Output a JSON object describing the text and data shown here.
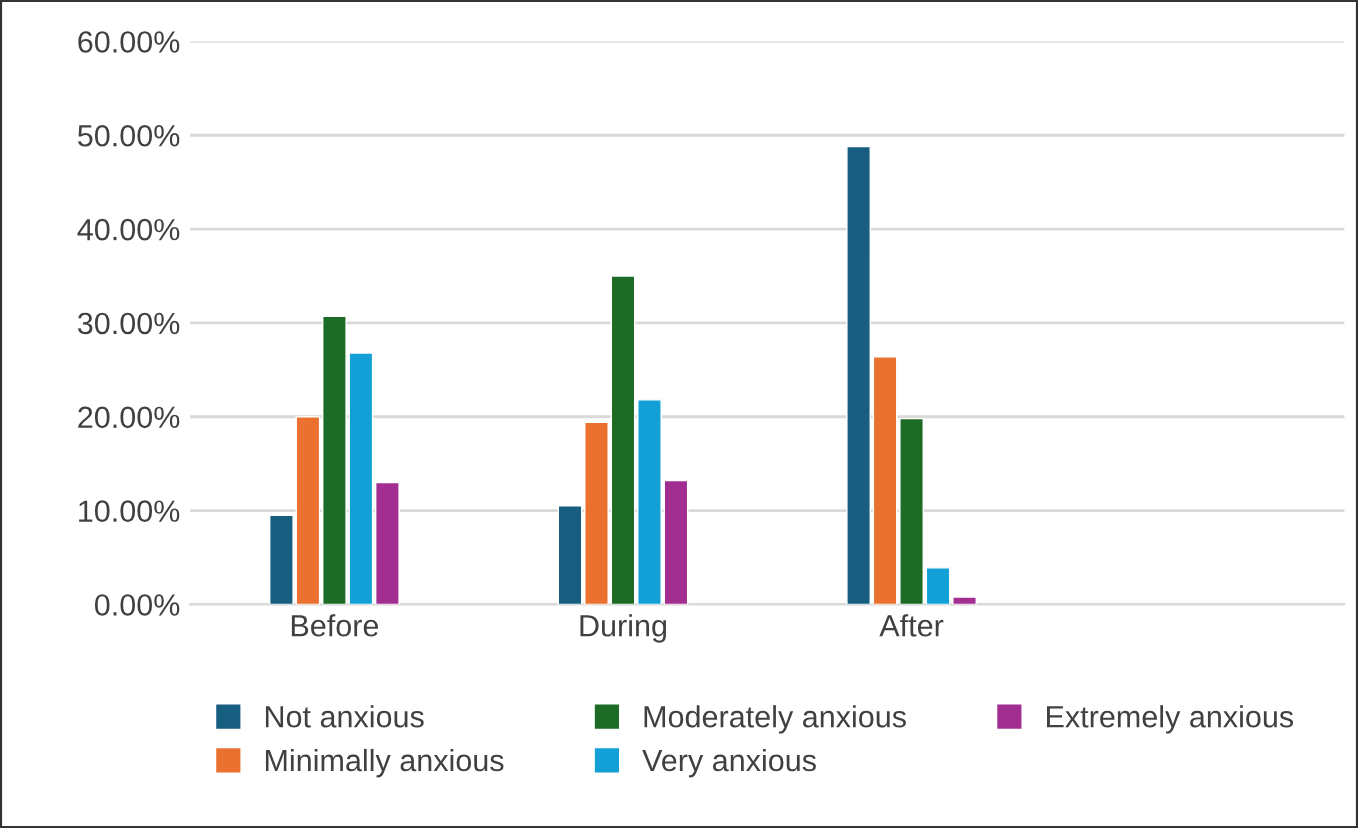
{
  "chart_data": {
    "type": "bar",
    "categories": [
      "Before",
      "During",
      "After",
      null
    ],
    "series": [
      {
        "name": "Not anxious",
        "color": "#175e80",
        "values": [
          9.5,
          10.5,
          48.8,
          null
        ]
      },
      {
        "name": "Minimally anxious",
        "color": "#ea7130",
        "values": [
          20,
          19.4,
          26.4,
          null
        ]
      },
      {
        "name": "Moderately anxious",
        "color": "#1d6b25",
        "values": [
          30.7,
          35,
          19.8,
          null
        ]
      },
      {
        "name": "Very anxious",
        "color": "#12a0d6",
        "values": [
          26.8,
          21.8,
          3.9,
          null
        ]
      },
      {
        "name": "Extremely anxious",
        "color": "#a22e92",
        "values": [
          13,
          13.2,
          0.8,
          null
        ]
      }
    ],
    "ylim": [
      0,
      60
    ],
    "yticks": [
      {
        "value": 0,
        "label": "0.00%"
      },
      {
        "value": 10,
        "label": "10.00%"
      },
      {
        "value": 20,
        "label": "20.00%"
      },
      {
        "value": 30,
        "label": "30.00%"
      },
      {
        "value": 40,
        "label": "40.00%"
      },
      {
        "value": 50,
        "label": "50.00%"
      },
      {
        "value": 60,
        "label": "60.00%"
      }
    ],
    "grid": "y",
    "legend": "bottom"
  }
}
